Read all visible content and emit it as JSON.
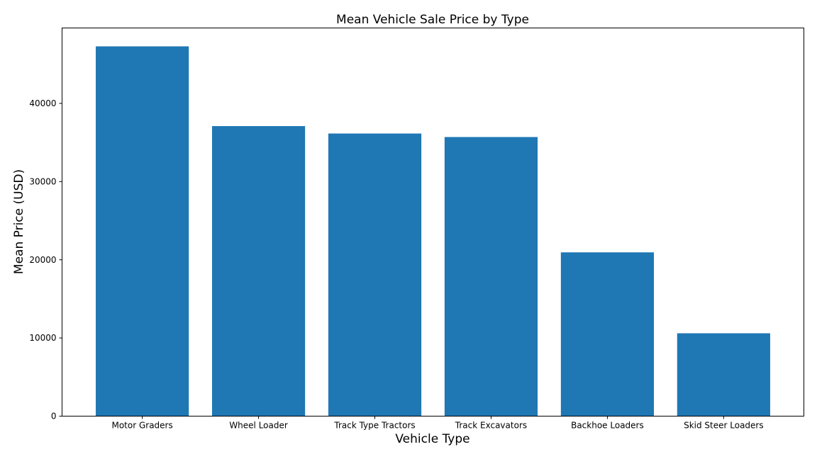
{
  "chart_data": {
    "type": "bar",
    "title": "Mean Vehicle Sale Price by Type",
    "xlabel": "Vehicle Type",
    "ylabel": "Mean Price (USD)",
    "categories": [
      "Motor Graders",
      "Wheel Loader",
      "Track Type Tractors",
      "Track Excavators",
      "Backhoe Loaders",
      "Skid Steer Loaders"
    ],
    "values": [
      47300,
      37100,
      36150,
      35700,
      20950,
      10600
    ],
    "ylim": [
      0,
      49650
    ],
    "yticks": [
      0,
      10000,
      20000,
      30000,
      40000
    ],
    "ytick_labels": [
      "0",
      "10000",
      "20000",
      "30000",
      "40000"
    ],
    "bar_color": "#1f77b4",
    "grid": false,
    "legend": "none"
  }
}
